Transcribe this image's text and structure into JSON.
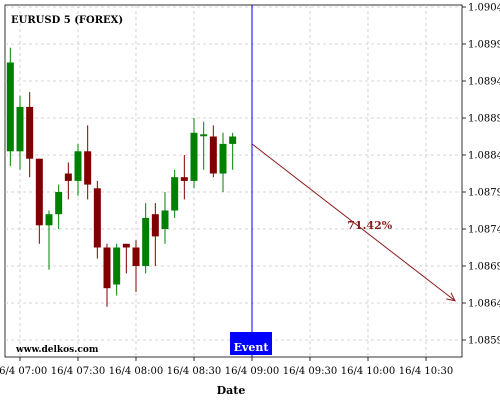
{
  "chart_data": {
    "type": "candlestick",
    "title": "EURUSD 5 (FOREX)",
    "xlabel": "Date",
    "ylabel": "",
    "ylim": [
      1.0857,
      1.0904
    ],
    "y_ticks": [
      1.0904,
      1.0899,
      1.0894,
      1.0889,
      1.0884,
      1.0879,
      1.0874,
      1.0869,
      1.0864,
      1.0859
    ],
    "x_ticks": [
      "16/4 07:00",
      "16/4 07:30",
      "16/4 08:00",
      "16/4 08:30",
      "16/4 09:00",
      "16/4 09:30",
      "16/4 10:00",
      "16/4 10:30"
    ],
    "grid": true,
    "candles": [
      {
        "time": "06:55",
        "open": 1.08845,
        "high": 1.08985,
        "low": 1.08825,
        "close": 1.08965
      },
      {
        "time": "07:00",
        "open": 1.08845,
        "high": 1.0892,
        "low": 1.0882,
        "close": 1.08905
      },
      {
        "time": "07:05",
        "open": 1.08905,
        "high": 1.08925,
        "low": 1.0881,
        "close": 1.08835
      },
      {
        "time": "07:10",
        "open": 1.08835,
        "high": 1.08835,
        "low": 1.0872,
        "close": 1.08745
      },
      {
        "time": "07:15",
        "open": 1.08745,
        "high": 1.08765,
        "low": 1.08685,
        "close": 1.0876
      },
      {
        "time": "07:20",
        "open": 1.0876,
        "high": 1.088,
        "low": 1.0874,
        "close": 1.0879
      },
      {
        "time": "07:25",
        "open": 1.08815,
        "high": 1.0883,
        "low": 1.0878,
        "close": 1.08805
      },
      {
        "time": "07:30",
        "open": 1.08805,
        "high": 1.08855,
        "low": 1.08785,
        "close": 1.08845
      },
      {
        "time": "07:35",
        "open": 1.08845,
        "high": 1.0888,
        "low": 1.0878,
        "close": 1.088
      },
      {
        "time": "07:40",
        "open": 1.08795,
        "high": 1.08805,
        "low": 1.087,
        "close": 1.08715
      },
      {
        "time": "07:45",
        "open": 1.08715,
        "high": 1.0872,
        "low": 1.08635,
        "close": 1.0866
      },
      {
        "time": "07:50",
        "open": 1.08665,
        "high": 1.0872,
        "low": 1.0865,
        "close": 1.08715
      },
      {
        "time": "07:55",
        "open": 1.0872,
        "high": 1.0872,
        "low": 1.0868,
        "close": 1.08715
      },
      {
        "time": "08:00",
        "open": 1.08715,
        "high": 1.08725,
        "low": 1.08655,
        "close": 1.0869
      },
      {
        "time": "08:05",
        "open": 1.0869,
        "high": 1.08775,
        "low": 1.0868,
        "close": 1.08755
      },
      {
        "time": "08:10",
        "open": 1.0876,
        "high": 1.08775,
        "low": 1.0869,
        "close": 1.0873
      },
      {
        "time": "08:15",
        "open": 1.0874,
        "high": 1.0879,
        "low": 1.0872,
        "close": 1.08765
      },
      {
        "time": "08:20",
        "open": 1.08765,
        "high": 1.0882,
        "low": 1.08755,
        "close": 1.0881
      },
      {
        "time": "08:25",
        "open": 1.0881,
        "high": 1.0884,
        "low": 1.0878,
        "close": 1.08805
      },
      {
        "time": "08:30",
        "open": 1.08805,
        "high": 1.0889,
        "low": 1.08795,
        "close": 1.0887
      },
      {
        "time": "08:35",
        "open": 1.08868,
        "high": 1.08885,
        "low": 1.0882,
        "close": 1.08868
      },
      {
        "time": "08:40",
        "open": 1.08865,
        "high": 1.0888,
        "low": 1.0881,
        "close": 1.08815
      },
      {
        "time": "08:45",
        "open": 1.08815,
        "high": 1.0887,
        "low": 1.0879,
        "close": 1.08855
      },
      {
        "time": "08:50",
        "open": 1.08855,
        "high": 1.0887,
        "low": 1.0882,
        "close": 1.08865
      }
    ],
    "event": {
      "time": "09:00",
      "label": "Event"
    },
    "projection": {
      "start_time": "09:00",
      "start_price": 1.08855,
      "end_time": "10:45",
      "end_price": 1.08643,
      "label": "71.42%"
    },
    "colors": {
      "up": "#008000",
      "down": "#800000",
      "event": "#0000ff",
      "projection": "#8b1a1a",
      "grid": "#c8c8c8"
    }
  },
  "watermark": "www.delkos.com"
}
